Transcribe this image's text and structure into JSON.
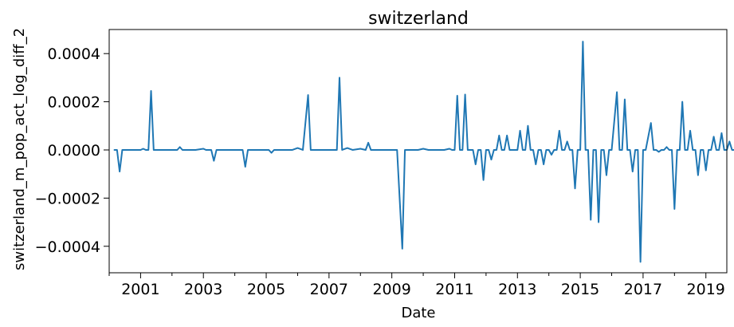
{
  "chart_data": {
    "type": "line",
    "title": "switzerland",
    "xlabel": "Date",
    "ylabel": "switzerland_m_pop_act_log_diff_2",
    "xlim": [
      "2000-01",
      "2019-09"
    ],
    "ylim": [
      -0.00051,
      0.0005
    ],
    "x_major_ticks": [
      "2001-01",
      "2003-01",
      "2005-01",
      "2007-01",
      "2009-01",
      "2011-01",
      "2013-01",
      "2015-01",
      "2017-01",
      "2019-01"
    ],
    "x_tick_labels": [
      "2001",
      "2003",
      "2005",
      "2007",
      "2009",
      "2011",
      "2013",
      "2015",
      "2017",
      "2019"
    ],
    "y_ticks": [
      -0.0004,
      -0.0002,
      0.0,
      0.0002,
      0.0004
    ],
    "y_tick_labels": [
      "−0.0004",
      "−0.0002",
      "0.0000",
      "0.0002",
      "0.0004"
    ],
    "grid": false,
    "legend": false,
    "series_color": "#1f77b4",
    "series": [
      {
        "points": [
          [
            "2000-03",
            0.0
          ],
          [
            "2000-04",
            0.0
          ],
          [
            "2000-05",
            -9e-05
          ],
          [
            "2000-06",
            0.0
          ],
          [
            "2000-07",
            0.0
          ],
          [
            "2001-01",
            0.0
          ],
          [
            "2001-02",
            5e-06
          ],
          [
            "2001-03",
            0.0
          ],
          [
            "2001-04",
            0.0
          ],
          [
            "2001-05",
            0.000245
          ],
          [
            "2001-06",
            0.0
          ],
          [
            "2001-07",
            0.0
          ],
          [
            "2002-03",
            0.0
          ],
          [
            "2002-04",
            1.2e-05
          ],
          [
            "2002-05",
            0.0
          ],
          [
            "2002-10",
            0.0
          ],
          [
            "2003-01",
            5e-06
          ],
          [
            "2003-02",
            0.0
          ],
          [
            "2003-04",
            0.0
          ],
          [
            "2003-05",
            -4.5e-05
          ],
          [
            "2003-06",
            0.0
          ],
          [
            "2004-04",
            0.0
          ],
          [
            "2004-05",
            -7e-05
          ],
          [
            "2004-06",
            0.0
          ],
          [
            "2005-02",
            0.0
          ],
          [
            "2005-03",
            -1.2e-05
          ],
          [
            "2005-04",
            0.0
          ],
          [
            "2005-11",
            0.0
          ],
          [
            "2006-01",
            8e-06
          ],
          [
            "2006-03",
            0.0
          ],
          [
            "2006-05",
            0.000228
          ],
          [
            "2006-06",
            0.0
          ],
          [
            "2007-04",
            0.0
          ],
          [
            "2007-05",
            0.0003
          ],
          [
            "2007-06",
            0.0
          ],
          [
            "2007-08",
            8e-06
          ],
          [
            "2007-10",
            0.0
          ],
          [
            "2008-01",
            5e-06
          ],
          [
            "2008-03",
            0.0
          ],
          [
            "2008-04",
            3e-05
          ],
          [
            "2008-05",
            0.0
          ],
          [
            "2009-03",
            0.0
          ],
          [
            "2009-05",
            -0.00041
          ],
          [
            "2009-06",
            0.0
          ],
          [
            "2009-11",
            0.0
          ],
          [
            "2010-01",
            5e-06
          ],
          [
            "2010-03",
            0.0
          ],
          [
            "2010-09",
            0.0
          ],
          [
            "2010-11",
            5e-06
          ],
          [
            "2010-12",
            0.0
          ],
          [
            "2011-01",
            0.0
          ],
          [
            "2011-02",
            0.000225
          ],
          [
            "2011-03",
            0.0
          ],
          [
            "2011-04",
            0.0
          ],
          [
            "2011-05",
            0.00023
          ],
          [
            "2011-06",
            0.0
          ],
          [
            "2011-08",
            0.0
          ],
          [
            "2011-09",
            -6e-05
          ],
          [
            "2011-10",
            0.0
          ],
          [
            "2011-11",
            0.0
          ],
          [
            "2011-12",
            -0.000125
          ],
          [
            "2012-01",
            0.0
          ],
          [
            "2012-02",
            0.0
          ],
          [
            "2012-03",
            -4e-05
          ],
          [
            "2012-04",
            0.0
          ],
          [
            "2012-05",
            0.0
          ],
          [
            "2012-06",
            6e-05
          ],
          [
            "2012-07",
            0.0
          ],
          [
            "2012-08",
            0.0
          ],
          [
            "2012-09",
            6e-05
          ],
          [
            "2012-10",
            0.0
          ],
          [
            "2013-01",
            0.0
          ],
          [
            "2013-02",
            8e-05
          ],
          [
            "2013-03",
            0.0
          ],
          [
            "2013-04",
            0.0
          ],
          [
            "2013-05",
            0.0001
          ],
          [
            "2013-06",
            0.0
          ],
          [
            "2013-07",
            0.0
          ],
          [
            "2013-08",
            -6e-05
          ],
          [
            "2013-09",
            0.0
          ],
          [
            "2013-10",
            0.0
          ],
          [
            "2013-11",
            -6e-05
          ],
          [
            "2013-12",
            0.0
          ],
          [
            "2014-01",
            0.0
          ],
          [
            "2014-02",
            -2e-05
          ],
          [
            "2014-03",
            0.0
          ],
          [
            "2014-04",
            0.0
          ],
          [
            "2014-05",
            8e-05
          ],
          [
            "2014-06",
            0.0
          ],
          [
            "2014-07",
            0.0
          ],
          [
            "2014-08",
            3.5e-05
          ],
          [
            "2014-09",
            0.0
          ],
          [
            "2014-10",
            0.0
          ],
          [
            "2014-11",
            -0.00016
          ],
          [
            "2014-12",
            0.0
          ],
          [
            "2015-01",
            0.0
          ],
          [
            "2015-02",
            0.00045
          ],
          [
            "2015-03",
            0.0
          ],
          [
            "2015-04",
            0.0
          ],
          [
            "2015-05",
            -0.00029
          ],
          [
            "2015-06",
            0.0
          ],
          [
            "2015-07",
            0.0
          ],
          [
            "2015-08",
            -0.0003
          ],
          [
            "2015-09",
            0.0
          ],
          [
            "2015-10",
            0.0
          ],
          [
            "2015-11",
            -0.000105
          ],
          [
            "2015-12",
            0.0
          ],
          [
            "2016-01",
            0.0
          ],
          [
            "2016-03",
            0.00024
          ],
          [
            "2016-04",
            0.0
          ],
          [
            "2016-05",
            0.0
          ],
          [
            "2016-06",
            0.00021
          ],
          [
            "2016-07",
            0.0
          ],
          [
            "2016-08",
            0.0
          ],
          [
            "2016-09",
            -9e-05
          ],
          [
            "2016-10",
            0.0
          ],
          [
            "2016-11",
            0.0
          ],
          [
            "2016-12",
            -0.000465
          ],
          [
            "2017-01",
            0.0
          ],
          [
            "2017-02",
            0.0
          ],
          [
            "2017-04",
            0.000112
          ],
          [
            "2017-05",
            0.0
          ],
          [
            "2017-06",
            0.0
          ],
          [
            "2017-07",
            -8e-06
          ],
          [
            "2017-08",
            0.0
          ],
          [
            "2017-09",
            0.0
          ],
          [
            "2017-10",
            1.2e-05
          ],
          [
            "2017-11",
            0.0
          ],
          [
            "2017-12",
            0.0
          ],
          [
            "2018-01",
            -0.000245
          ],
          [
            "2018-02",
            0.0
          ],
          [
            "2018-03",
            0.0
          ],
          [
            "2018-04",
            0.0002
          ],
          [
            "2018-05",
            0.0
          ],
          [
            "2018-06",
            0.0
          ],
          [
            "2018-07",
            8e-05
          ],
          [
            "2018-08",
            0.0
          ],
          [
            "2018-09",
            0.0
          ],
          [
            "2018-10",
            -0.000105
          ],
          [
            "2018-11",
            0.0
          ],
          [
            "2018-12",
            0.0
          ],
          [
            "2019-01",
            -8.5e-05
          ],
          [
            "2019-02",
            0.0
          ],
          [
            "2019-03",
            0.0
          ],
          [
            "2019-04",
            5.5e-05
          ],
          [
            "2019-05",
            0.0
          ],
          [
            "2019-06",
            0.0
          ],
          [
            "2019-07",
            7e-05
          ],
          [
            "2019-08",
            0.0
          ],
          [
            "2019-09",
            0.0
          ],
          [
            "2019-10",
            3.5e-05
          ],
          [
            "2019-11",
            0.0
          ],
          [
            "2019-12",
            0.0
          ]
        ]
      }
    ]
  }
}
